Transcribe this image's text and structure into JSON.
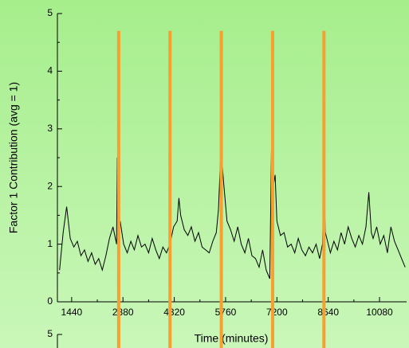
{
  "chart_data": [
    {
      "type": "line",
      "ylabel": "Factor 1 Contribution (avg = 1)",
      "xlabel": "Time (minutes)",
      "xlim": [
        1040,
        10840
      ],
      "ylim": [
        0,
        5
      ],
      "xticks": [
        1440,
        2880,
        4320,
        5760,
        7200,
        8640,
        10080
      ],
      "yticks": [
        0,
        1,
        2,
        3,
        4,
        5
      ],
      "vlines": [
        2760,
        4200,
        5640,
        7080,
        8520
      ],
      "vline_color": "#f7a030",
      "series": [
        {
          "color": "#000000",
          "x": [
            1100,
            1200,
            1300,
            1400,
            1500,
            1600,
            1700,
            1800,
            1900,
            2000,
            2100,
            2200,
            2300,
            2400,
            2500,
            2600,
            2700,
            2720,
            2760,
            2800,
            2900,
            3000,
            3100,
            3200,
            3300,
            3400,
            3500,
            3600,
            3700,
            3800,
            3900,
            4000,
            4100,
            4200,
            4300,
            4400,
            4450,
            4500,
            4600,
            4700,
            4800,
            4900,
            5000,
            5100,
            5200,
            5300,
            5400,
            5500,
            5560,
            5600,
            5630,
            5700,
            5800,
            5900,
            6000,
            6100,
            6200,
            6300,
            6400,
            6500,
            6600,
            6700,
            6800,
            6900,
            7000,
            7050,
            7100,
            7150,
            7200,
            7300,
            7400,
            7500,
            7600,
            7700,
            7800,
            7900,
            8000,
            8100,
            8200,
            8300,
            8400,
            8480,
            8520,
            8560,
            8600,
            8700,
            8800,
            8900,
            9000,
            9100,
            9200,
            9300,
            9400,
            9500,
            9600,
            9700,
            9780,
            9850,
            9900,
            10000,
            10100,
            10200,
            10300,
            10400,
            10500,
            10600,
            10700,
            10800
          ],
          "values": [
            0.55,
            1.2,
            1.65,
            1.1,
            0.95,
            1.05,
            0.8,
            0.9,
            0.7,
            0.85,
            0.65,
            0.75,
            0.55,
            0.8,
            1.1,
            1.3,
            1.0,
            2.5,
            1.2,
            1.4,
            1.0,
            0.85,
            1.05,
            0.9,
            1.15,
            0.95,
            1.0,
            0.85,
            1.1,
            0.9,
            0.75,
            0.95,
            0.85,
            1.0,
            1.3,
            1.4,
            1.8,
            1.5,
            1.25,
            1.15,
            1.3,
            1.05,
            1.2,
            0.95,
            0.9,
            0.85,
            1.05,
            1.2,
            1.6,
            2.2,
            2.7,
            2.1,
            1.4,
            1.25,
            1.05,
            1.3,
            1.0,
            0.85,
            1.1,
            0.8,
            0.75,
            0.6,
            0.9,
            0.55,
            0.4,
            2.75,
            2.0,
            2.2,
            1.4,
            1.15,
            1.2,
            0.95,
            1.0,
            0.85,
            1.1,
            0.9,
            0.8,
            0.95,
            0.85,
            1.0,
            0.75,
            1.0,
            2.0,
            1.2,
            1.1,
            0.85,
            1.05,
            0.9,
            1.2,
            1.0,
            1.3,
            1.1,
            0.95,
            1.15,
            1.0,
            1.3,
            1.9,
            1.2,
            1.1,
            1.3,
            1.0,
            1.15,
            0.85,
            1.3,
            1.05,
            0.9,
            0.75,
            0.6
          ]
        }
      ]
    },
    {
      "type": "line",
      "ylim": [
        0,
        5
      ],
      "yticks": [
        5
      ]
    }
  ]
}
